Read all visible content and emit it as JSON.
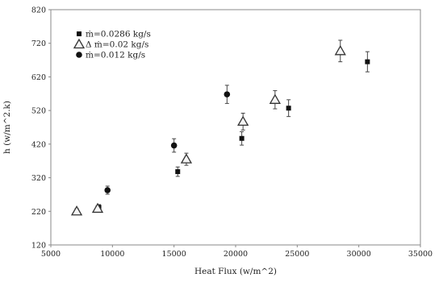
{
  "chart_data": {
    "type": "scatter",
    "xlabel": "Heat Flux (w/m^2)",
    "ylabel": "h (w/m^2.k)",
    "xlim": [
      5000,
      35000
    ],
    "ylim": [
      120,
      820
    ],
    "x_ticks": [
      "5000",
      "10000",
      "15000",
      "20000",
      "25000",
      "30000",
      "35000"
    ],
    "y_ticks": [
      "120",
      "220",
      "320",
      "420",
      "520",
      "620",
      "720",
      "820"
    ],
    "legend_placement": "top-left",
    "series": [
      {
        "name": "ṁ=0.0286 kg/s",
        "marker": "square",
        "points": [
          {
            "x": 8900,
            "y": 232,
            "err": 8
          },
          {
            "x": 15300,
            "y": 338,
            "err": 14
          },
          {
            "x": 20500,
            "y": 437,
            "err": 20
          },
          {
            "x": 24300,
            "y": 527,
            "err": 25
          },
          {
            "x": 30700,
            "y": 665,
            "err": 30
          }
        ]
      },
      {
        "name": "Δ ṁ=0.02    kg/s",
        "marker": "triangle",
        "points": [
          {
            "x": 7100,
            "y": 220,
            "err": 8
          },
          {
            "x": 8800,
            "y": 228,
            "err": 8
          },
          {
            "x": 16000,
            "y": 375,
            "err": 18
          },
          {
            "x": 20600,
            "y": 487,
            "err": 25
          },
          {
            "x": 23200,
            "y": 552,
            "err": 27
          },
          {
            "x": 28500,
            "y": 697,
            "err": 32
          }
        ]
      },
      {
        "name": "ṁ=0.012 kg/s",
        "marker": "circle",
        "points": [
          {
            "x": 9600,
            "y": 283,
            "err": 12
          },
          {
            "x": 15000,
            "y": 416,
            "err": 20
          },
          {
            "x": 19300,
            "y": 568,
            "err": 27
          }
        ]
      }
    ]
  }
}
